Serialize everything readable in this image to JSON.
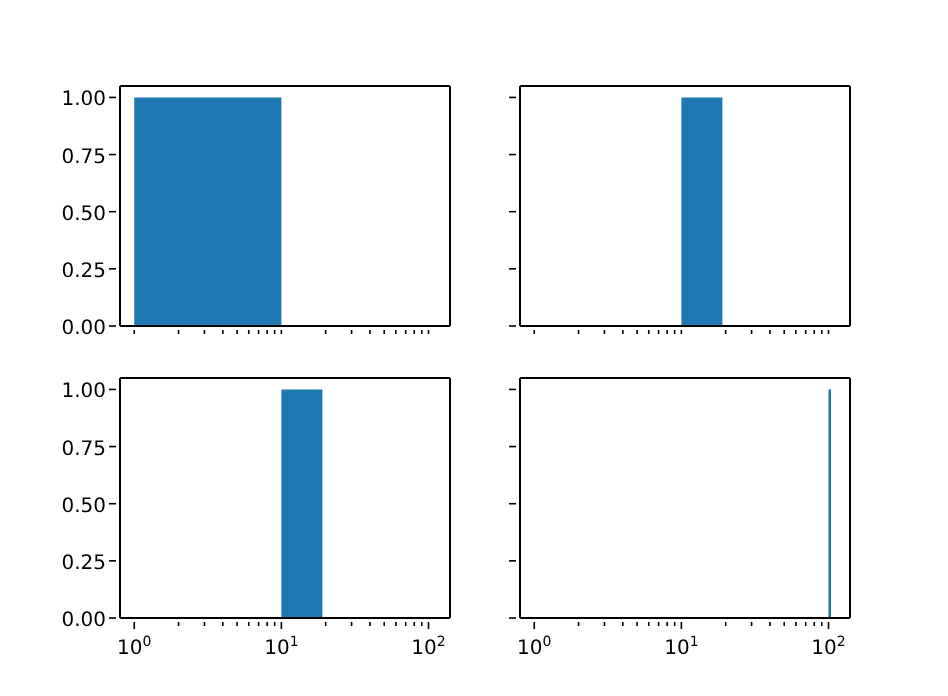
{
  "chart_data": [
    {
      "type": "histogram",
      "bins": [
        1,
        10
      ],
      "values": [
        1
      ],
      "color": "#1f77b4",
      "log": "x",
      "xlim": [
        0.8,
        140
      ],
      "ylim": [
        0,
        1.05
      ],
      "tick_labels": "y",
      "xticks": [
        {
          "value": 1,
          "label": null
        },
        {
          "value": 2,
          "label": null
        },
        {
          "value": 3,
          "label": null
        },
        {
          "value": 4,
          "label": null
        },
        {
          "value": 5,
          "label": null
        },
        {
          "value": 6,
          "label": null
        },
        {
          "value": 7,
          "label": null
        },
        {
          "value": 8,
          "label": null
        },
        {
          "value": 9,
          "label": null
        },
        {
          "value": 10,
          "label": null
        },
        {
          "value": 20,
          "label": null
        },
        {
          "value": 30,
          "label": null
        },
        {
          "value": 40,
          "label": null
        },
        {
          "value": 50,
          "label": null
        },
        {
          "value": 60,
          "label": null
        },
        {
          "value": 70,
          "label": null
        },
        {
          "value": 80,
          "label": null
        },
        {
          "value": 90,
          "label": null
        },
        {
          "value": 100,
          "label": null
        }
      ],
      "yticks": [
        {
          "value": 0,
          "label": "0.00"
        },
        {
          "value": 0.25,
          "label": "0.25"
        },
        {
          "value": 0.5,
          "label": "0.50"
        },
        {
          "value": 0.75,
          "label": "0.75"
        },
        {
          "value": 1,
          "label": "1.00"
        }
      ]
    },
    {
      "type": "histogram",
      "bins": [
        10,
        19
      ],
      "values": [
        1
      ],
      "color": "#1f77b4",
      "log": "x",
      "xlim": [
        0.8,
        140
      ],
      "ylim": [
        0,
        1.05
      ],
      "tick_labels": false,
      "xticks": [
        {
          "value": 1,
          "label": null
        },
        {
          "value": 2,
          "label": null
        },
        {
          "value": 3,
          "label": null
        },
        {
          "value": 4,
          "label": null
        },
        {
          "value": 5,
          "label": null
        },
        {
          "value": 6,
          "label": null
        },
        {
          "value": 7,
          "label": null
        },
        {
          "value": 8,
          "label": null
        },
        {
          "value": 9,
          "label": null
        },
        {
          "value": 10,
          "label": null
        },
        {
          "value": 20,
          "label": null
        },
        {
          "value": 30,
          "label": null
        },
        {
          "value": 40,
          "label": null
        },
        {
          "value": 50,
          "label": null
        },
        {
          "value": 60,
          "label": null
        },
        {
          "value": 70,
          "label": null
        },
        {
          "value": 80,
          "label": null
        },
        {
          "value": 90,
          "label": null
        },
        {
          "value": 100,
          "label": null
        }
      ],
      "yticks": [
        {
          "value": 0,
          "label": null
        },
        {
          "value": 0.25,
          "label": null
        },
        {
          "value": 0.5,
          "label": null
        },
        {
          "value": 0.75,
          "label": null
        },
        {
          "value": 1,
          "label": null
        }
      ]
    },
    {
      "type": "histogram",
      "bins": [
        10,
        19
      ],
      "values": [
        1
      ],
      "color": "#1f77b4",
      "log": "x",
      "xlim": [
        0.8,
        140
      ],
      "ylim": [
        0,
        1.05
      ],
      "xticks": [
        {
          "value": 1,
          "label": "10$^{0}$"
        },
        {
          "value": 2,
          "label": null
        },
        {
          "value": 3,
          "label": null
        },
        {
          "value": 4,
          "label": null
        },
        {
          "value": 5,
          "label": null
        },
        {
          "value": 6,
          "label": null
        },
        {
          "value": 7,
          "label": null
        },
        {
          "value": 8,
          "label": null
        },
        {
          "value": 9,
          "label": null
        },
        {
          "value": 10,
          "label": "10$^{1}$"
        },
        {
          "value": 20,
          "label": null
        },
        {
          "value": 30,
          "label": null
        },
        {
          "value": 40,
          "label": null
        },
        {
          "value": 50,
          "label": null
        },
        {
          "value": 60,
          "label": null
        },
        {
          "value": 70,
          "label": null
        },
        {
          "value": 80,
          "label": null
        },
        {
          "value": 90,
          "label": null
        },
        {
          "value": 100,
          "label": "10$^{2}$"
        }
      ],
      "yticks": [
        {
          "value": 0,
          "label": "0.00"
        },
        {
          "value": 0.25,
          "label": "0.25"
        },
        {
          "value": 0.5,
          "label": "0.50"
        },
        {
          "value": 0.75,
          "label": "0.75"
        },
        {
          "value": 1,
          "label": "1.00"
        }
      ]
    },
    {
      "type": "histogram",
      "bins": [
        100,
        104
      ],
      "values": [
        1
      ],
      "color": "#1f77b4",
      "log": "x",
      "xlim": [
        0.8,
        140
      ],
      "ylim": [
        0,
        1.05
      ],
      "tick_labels": "x",
      "xticks": [
        {
          "value": 1,
          "label": "10$^{0}$"
        },
        {
          "value": 2,
          "label": null
        },
        {
          "value": 3,
          "label": null
        },
        {
          "value": 4,
          "label": null
        },
        {
          "value": 5,
          "label": null
        },
        {
          "value": 6,
          "label": null
        },
        {
          "value": 7,
          "label": null
        },
        {
          "value": 8,
          "label": null
        },
        {
          "value": 9,
          "label": null
        },
        {
          "value": 10,
          "label": "10$^{1}$"
        },
        {
          "value": 20,
          "label": null
        },
        {
          "value": 30,
          "label": null
        },
        {
          "value": 40,
          "label": null
        },
        {
          "value": 50,
          "label": null
        },
        {
          "value": 60,
          "label": null
        },
        {
          "value": 70,
          "label": null
        },
        {
          "value": 80,
          "label": null
        },
        {
          "value": 90,
          "label": null
        },
        {
          "value": 100,
          "label": "10$^{2}$"
        }
      ],
      "yticks": [
        {
          "value": 0,
          "label": null
        },
        {
          "value": 0.25,
          "label": null
        },
        {
          "value": 0.5,
          "label": null
        },
        {
          "value": 0.75,
          "label": null
        },
        {
          "value": 1,
          "label": null
        }
      ]
    }
  ]
}
